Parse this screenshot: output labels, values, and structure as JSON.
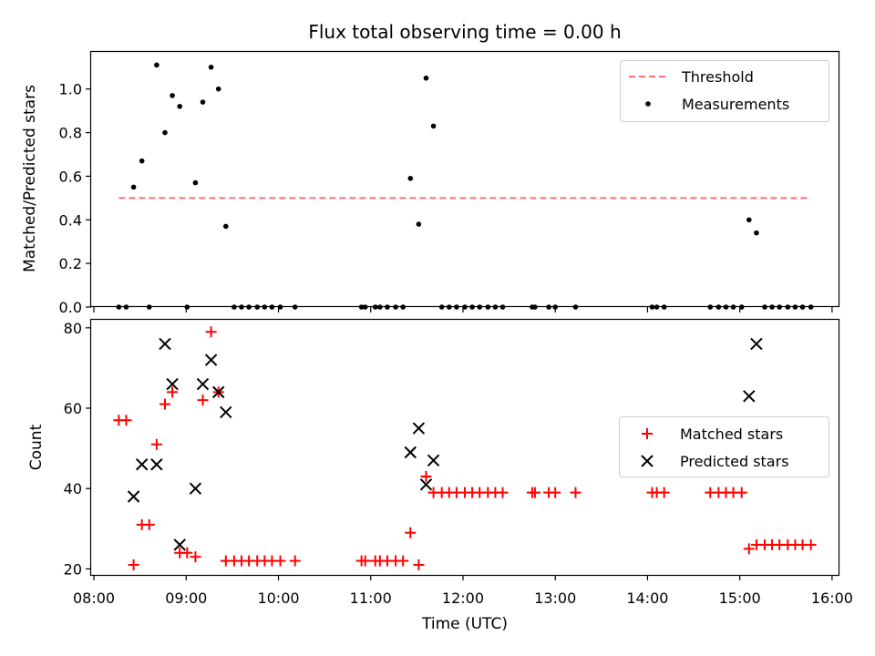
{
  "chart_data": [
    {
      "type": "scatter",
      "title": "Flux total observing time = 0.00 h",
      "xlabel": "",
      "ylabel": "Matched/Predicted stars",
      "xlim": [
        7.97,
        16.07
      ],
      "ylim": [
        0.0,
        1.17
      ],
      "yticks": [
        0.0,
        0.2,
        0.4,
        0.6,
        0.8,
        1.0
      ],
      "ytick_labels": [
        "0.0",
        "0.2",
        "0.4",
        "0.6",
        "0.8",
        "1.0"
      ],
      "legend": [
        {
          "label": "Threshold",
          "style": "dashed-line",
          "color": "#ff7070"
        },
        {
          "label": "Measurements",
          "style": "dot",
          "color": "#000000"
        }
      ],
      "threshold": {
        "name": "Threshold",
        "y": 0.5,
        "x_start": 8.27,
        "x_end": 15.77,
        "color": "#ff7070"
      },
      "series": [
        {
          "name": "Measurements",
          "color": "#000000",
          "points": [
            [
              8.27,
              0
            ],
            [
              8.35,
              0
            ],
            [
              8.43,
              0.55
            ],
            [
              8.52,
              0.67
            ],
            [
              8.6,
              0
            ],
            [
              8.68,
              1.11
            ],
            [
              8.77,
              0.8
            ],
            [
              8.85,
              0.97
            ],
            [
              8.93,
              0.92
            ],
            [
              9.01,
              0
            ],
            [
              9.1,
              0.57
            ],
            [
              9.18,
              0.94
            ],
            [
              9.27,
              1.1
            ],
            [
              9.35,
              1.0
            ],
            [
              9.43,
              0.37
            ],
            [
              9.52,
              0
            ],
            [
              9.6,
              0
            ],
            [
              9.68,
              0
            ],
            [
              9.77,
              0
            ],
            [
              9.85,
              0
            ],
            [
              9.93,
              0
            ],
            [
              10.02,
              0
            ],
            [
              10.18,
              0
            ],
            [
              10.9,
              0
            ],
            [
              10.94,
              0
            ],
            [
              11.05,
              0
            ],
            [
              11.1,
              0
            ],
            [
              11.18,
              0
            ],
            [
              11.27,
              0
            ],
            [
              11.35,
              0
            ],
            [
              11.43,
              0.59
            ],
            [
              11.52,
              0.38
            ],
            [
              11.6,
              1.05
            ],
            [
              11.68,
              0.83
            ],
            [
              11.77,
              0
            ],
            [
              11.85,
              0
            ],
            [
              11.93,
              0
            ],
            [
              12.02,
              0
            ],
            [
              12.1,
              0
            ],
            [
              12.18,
              0
            ],
            [
              12.27,
              0
            ],
            [
              12.35,
              0
            ],
            [
              12.43,
              0
            ],
            [
              12.75,
              0
            ],
            [
              12.78,
              0
            ],
            [
              12.93,
              0
            ],
            [
              13.0,
              0
            ],
            [
              13.22,
              0
            ],
            [
              14.05,
              0
            ],
            [
              14.1,
              0
            ],
            [
              14.18,
              0
            ],
            [
              14.68,
              0
            ],
            [
              14.77,
              0
            ],
            [
              14.85,
              0
            ],
            [
              14.93,
              0
            ],
            [
              15.02,
              0
            ],
            [
              15.1,
              0.4
            ],
            [
              15.18,
              0.34
            ],
            [
              15.27,
              0
            ],
            [
              15.35,
              0
            ],
            [
              15.43,
              0
            ],
            [
              15.52,
              0
            ],
            [
              15.6,
              0
            ],
            [
              15.68,
              0
            ],
            [
              15.77,
              0
            ]
          ]
        }
      ]
    },
    {
      "type": "scatter",
      "title": "",
      "xlabel": "Time (UTC)",
      "ylabel": "Count",
      "xlim": [
        7.97,
        16.07
      ],
      "ylim": [
        18.5,
        82.0
      ],
      "yticks": [
        20,
        40,
        60,
        80
      ],
      "ytick_labels": [
        "20",
        "40",
        "60",
        "80"
      ],
      "xticks": [
        8,
        9,
        10,
        11,
        12,
        13,
        14,
        15,
        16
      ],
      "xtick_labels": [
        "08:00",
        "09:00",
        "10:00",
        "11:00",
        "12:00",
        "13:00",
        "14:00",
        "15:00",
        "16:00"
      ],
      "legend": [
        {
          "label": "Matched stars",
          "style": "plus",
          "color": "#ff0000"
        },
        {
          "label": "Predicted stars",
          "style": "x",
          "color": "#000000"
        }
      ],
      "series": [
        {
          "name": "Matched stars",
          "color": "#ff0000",
          "marker": "plus",
          "points": [
            [
              8.27,
              57
            ],
            [
              8.35,
              57
            ],
            [
              8.43,
              21
            ],
            [
              8.52,
              31
            ],
            [
              8.6,
              31
            ],
            [
              8.68,
              51
            ],
            [
              8.77,
              61
            ],
            [
              8.85,
              64
            ],
            [
              8.93,
              24
            ],
            [
              9.01,
              24
            ],
            [
              9.1,
              23
            ],
            [
              9.18,
              62
            ],
            [
              9.27,
              79
            ],
            [
              9.35,
              64
            ],
            [
              9.43,
              22
            ],
            [
              9.52,
              22
            ],
            [
              9.6,
              22
            ],
            [
              9.68,
              22
            ],
            [
              9.77,
              22
            ],
            [
              9.85,
              22
            ],
            [
              9.93,
              22
            ],
            [
              10.02,
              22
            ],
            [
              10.18,
              22
            ],
            [
              10.9,
              22
            ],
            [
              10.94,
              22
            ],
            [
              11.05,
              22
            ],
            [
              11.1,
              22
            ],
            [
              11.18,
              22
            ],
            [
              11.27,
              22
            ],
            [
              11.35,
              22
            ],
            [
              11.43,
              29
            ],
            [
              11.52,
              21
            ],
            [
              11.6,
              43
            ],
            [
              11.68,
              39
            ],
            [
              11.77,
              39
            ],
            [
              11.85,
              39
            ],
            [
              11.93,
              39
            ],
            [
              12.02,
              39
            ],
            [
              12.1,
              39
            ],
            [
              12.18,
              39
            ],
            [
              12.27,
              39
            ],
            [
              12.35,
              39
            ],
            [
              12.43,
              39
            ],
            [
              12.75,
              39
            ],
            [
              12.78,
              39
            ],
            [
              12.93,
              39
            ],
            [
              13.0,
              39
            ],
            [
              13.22,
              39
            ],
            [
              14.05,
              39
            ],
            [
              14.1,
              39
            ],
            [
              14.18,
              39
            ],
            [
              14.68,
              39
            ],
            [
              14.77,
              39
            ],
            [
              14.85,
              39
            ],
            [
              14.93,
              39
            ],
            [
              15.02,
              39
            ],
            [
              15.1,
              25
            ],
            [
              15.18,
              26
            ],
            [
              15.27,
              26
            ],
            [
              15.35,
              26
            ],
            [
              15.43,
              26
            ],
            [
              15.52,
              26
            ],
            [
              15.6,
              26
            ],
            [
              15.68,
              26
            ],
            [
              15.77,
              26
            ]
          ]
        },
        {
          "name": "Predicted stars",
          "color": "#000000",
          "marker": "x",
          "points": [
            [
              8.43,
              38
            ],
            [
              8.52,
              46
            ],
            [
              8.68,
              46
            ],
            [
              8.77,
              76
            ],
            [
              8.85,
              66
            ],
            [
              8.93,
              26
            ],
            [
              9.1,
              40
            ],
            [
              9.18,
              66
            ],
            [
              9.27,
              72
            ],
            [
              9.35,
              64
            ],
            [
              9.43,
              59
            ],
            [
              11.43,
              49
            ],
            [
              11.52,
              55
            ],
            [
              11.6,
              41
            ],
            [
              11.68,
              47
            ],
            [
              15.1,
              63
            ],
            [
              15.18,
              76
            ]
          ]
        }
      ]
    }
  ]
}
